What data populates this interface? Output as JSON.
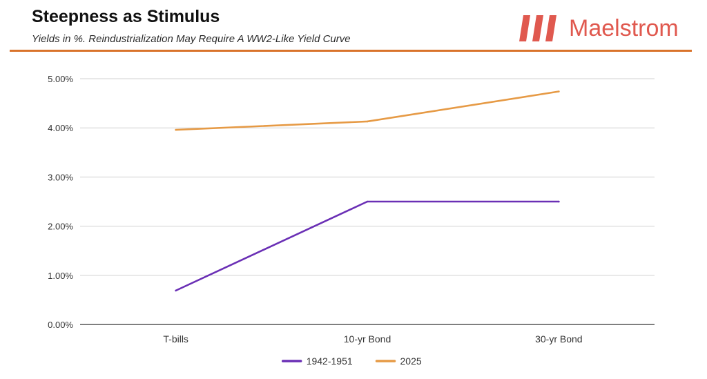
{
  "header": {
    "title": "Steepness as Stimulus",
    "subtitle": "Yields in %. Reindustrialization May Require A WW2-Like Yield Curve",
    "rule_color": "#d9732b"
  },
  "brand": {
    "name": "Maelstrom",
    "color": "#e0594f",
    "icon": "three-slanted-bars-logo"
  },
  "chart_data": {
    "type": "line",
    "categories": [
      "T-bills",
      "10-yr Bond",
      "30-yr Bond"
    ],
    "series": [
      {
        "name": "1942-1951",
        "values": [
          0.69,
          2.5,
          2.5
        ],
        "color": "#6a2fb5"
      },
      {
        "name": "2025",
        "values": [
          3.96,
          4.13,
          4.74
        ],
        "color": "#e69a45"
      }
    ],
    "ylim": [
      0,
      5
    ],
    "yticks": [
      {
        "value": 0,
        "label": "0.00%"
      },
      {
        "value": 1,
        "label": "1.00%"
      },
      {
        "value": 2,
        "label": "2.00%"
      },
      {
        "value": 3,
        "label": "3.00%"
      },
      {
        "value": 4,
        "label": "4.00%"
      },
      {
        "value": 5,
        "label": "5.00%"
      }
    ],
    "grid": true,
    "legend_position": "bottom"
  }
}
